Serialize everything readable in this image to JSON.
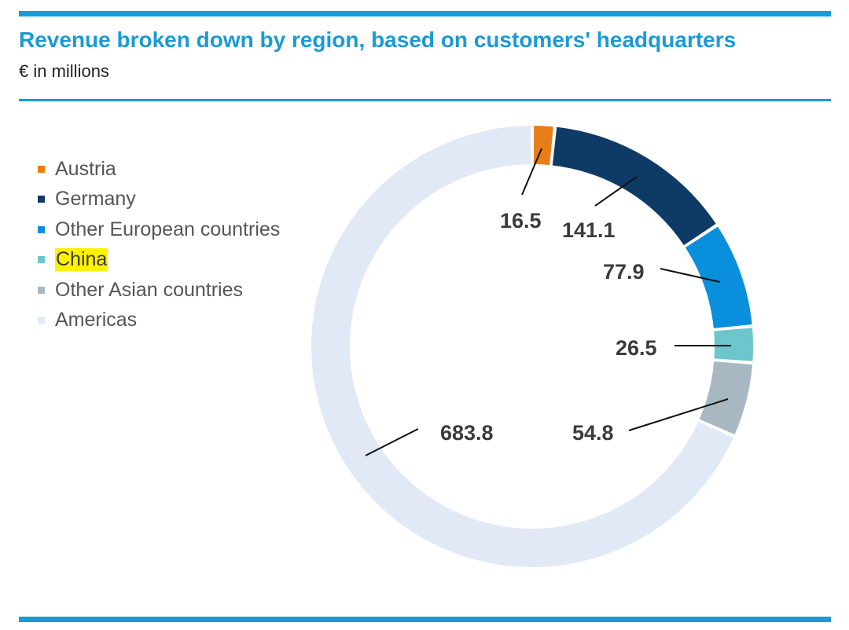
{
  "header": {
    "title": "Revenue broken down by region, based on customers' headquarters",
    "subtitle": "€ in millions"
  },
  "chart_data": {
    "type": "pie",
    "donut": true,
    "legend_position": "left",
    "unit": "€ in millions",
    "categories": [
      "Austria",
      "Germany",
      "Other European countries",
      "China",
      "Other Asian countries",
      "Americas"
    ],
    "values": [
      16.5,
      141.1,
      77.9,
      26.5,
      54.8,
      683.8
    ],
    "value_labels": [
      "16.5",
      "141.1",
      "77.9",
      "26.5",
      "54.8",
      "683.8"
    ],
    "colors": [
      "#e87e1a",
      "#0d3b66",
      "#0a8fdc",
      "#6cc6cc",
      "#a7b8c2",
      "#e1e9f7"
    ],
    "highlighted_legend": [
      "China"
    ]
  }
}
